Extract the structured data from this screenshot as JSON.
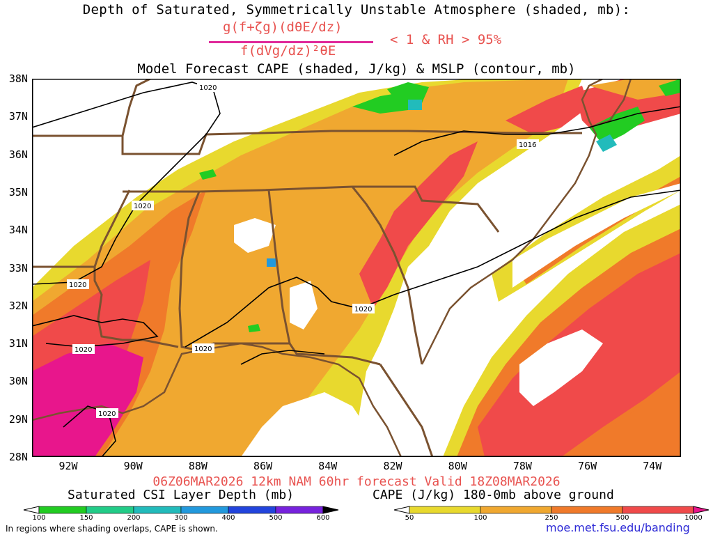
{
  "title": {
    "line1": "Depth of Saturated, Symmetrically Unstable Atmosphere (shaded, mb):",
    "numerator": "g(f+ζg)(dθE/dz)",
    "denominator": "f(dVg/dz)²θE",
    "condition": "< 1 & RH > 95%",
    "line3": "Model Forecast CAPE (shaded, J/kg) & MSLP (contour, mb)"
  },
  "axes": {
    "lat_labels": [
      "38N",
      "37N",
      "36N",
      "35N",
      "34N",
      "33N",
      "32N",
      "31N",
      "30N",
      "29N",
      "28N"
    ],
    "lon_labels": [
      "92W",
      "90W",
      "88W",
      "86W",
      "84W",
      "82W",
      "80W",
      "78W",
      "76W",
      "74W"
    ]
  },
  "isobars": {
    "labels": [
      "1020",
      "1020",
      "1020",
      "1020",
      "1020",
      "1020",
      "1020",
      "1016"
    ]
  },
  "valid_line": "06Z06MAR2026 12km NAM 60hr forecast Valid 18Z08MAR2026",
  "colorbar_csi": {
    "title": "Saturated CSI Layer Depth (mb)",
    "ticks": [
      "100",
      "150",
      "200",
      "300",
      "400",
      "500",
      "600"
    ],
    "colors": [
      "#ffffff",
      "#22cc22",
      "#22cc88",
      "#22bbbb",
      "#2299dd",
      "#2244dd",
      "#7722dd",
      "#000000"
    ]
  },
  "colorbar_cape": {
    "title": "CAPE (J/kg) 180-0mb above ground",
    "ticks": [
      "50",
      "100",
      "250",
      "500",
      "1000"
    ],
    "colors": [
      "#ffffff",
      "#e8d92e",
      "#f0a830",
      "#f07a2a",
      "#f04a4a",
      "#e8168c"
    ]
  },
  "note": "In regions where shading overlaps, CAPE is shown.",
  "url": "moe.met.fsu.edu/banding"
}
